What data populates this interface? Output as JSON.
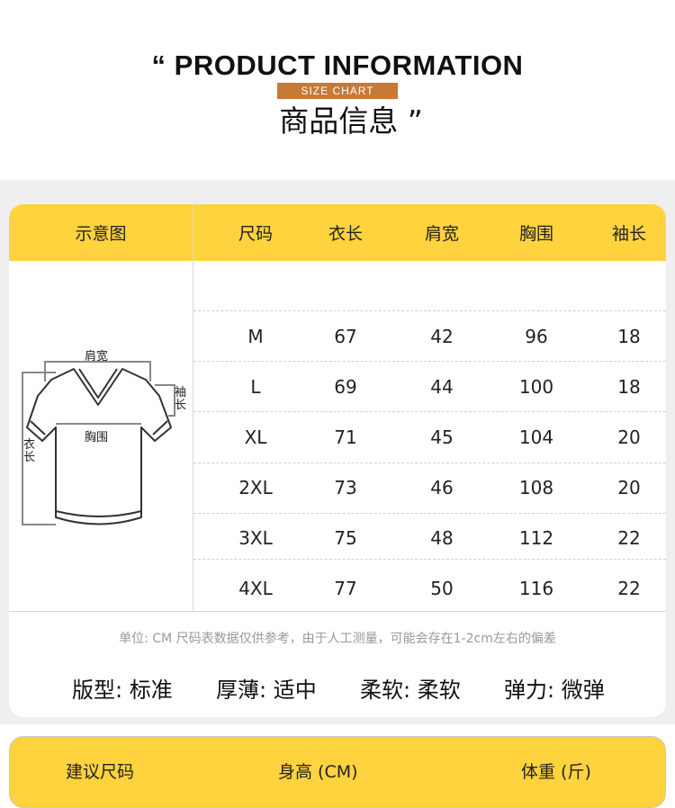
{
  "header": {
    "title_en": "“ PRODUCT INFORMATION",
    "tag": "SIZE CHART",
    "title_cn": "商品信息 ”"
  },
  "table": {
    "diagram_header": "示意图",
    "columns": [
      "尺码",
      "衣长",
      "肩宽",
      "胸围",
      "袖长"
    ],
    "rows": [
      [
        "M",
        "67",
        "42",
        "96",
        "18"
      ],
      [
        "L",
        "69",
        "44",
        "100",
        "18"
      ],
      [
        "XL",
        "71",
        "45",
        "104",
        "20"
      ],
      [
        "2XL",
        "73",
        "46",
        "108",
        "20"
      ],
      [
        "3XL",
        "75",
        "48",
        "112",
        "22"
      ],
      [
        "4XL",
        "77",
        "50",
        "116",
        "22"
      ]
    ],
    "diagram_labels": {
      "shoulder": "肩宽",
      "sleeve": "袖长",
      "chest": "胸围",
      "length": "衣长"
    }
  },
  "note": "单位: CM    尺码表数据仅供参考，由于人工测量，可能会存在1-2cm左右的偏差",
  "properties": [
    "版型: 标准",
    "厚薄: 适中",
    "柔软: 柔软",
    "弹力: 微弹"
  ],
  "recommend": {
    "columns": [
      "建议尺码",
      "身高 (CM)",
      "体重 (斤)"
    ]
  },
  "colors": {
    "header_yellow": "#fed33d",
    "tag_orange": "#c87936",
    "background_gray": "#efefef"
  }
}
